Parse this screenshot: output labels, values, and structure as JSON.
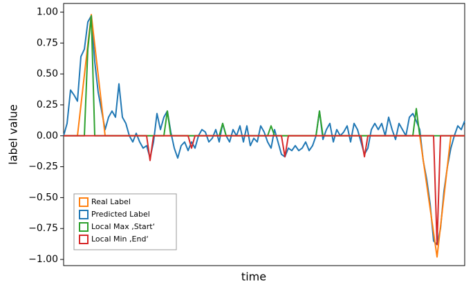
{
  "chart_data": {
    "type": "line",
    "xlabel": "time",
    "ylabel": "label value",
    "ylim": [
      -1.05,
      1.07
    ],
    "yticks": [
      {
        "value": 1.0,
        "label": "1.00"
      },
      {
        "value": 0.75,
        "label": "0.75"
      },
      {
        "value": 0.5,
        "label": "0.50"
      },
      {
        "value": 0.25,
        "label": "0.25"
      },
      {
        "value": 0.0,
        "label": "0.00"
      },
      {
        "value": -0.25,
        "label": "−0.25"
      },
      {
        "value": -0.5,
        "label": "−0.50"
      },
      {
        "value": -0.75,
        "label": "−0.75"
      },
      {
        "value": -1.0,
        "label": "−1.00"
      }
    ],
    "legend": "lower left",
    "series": [
      {
        "name": "Real Label",
        "color": "#ff7f0e",
        "values": [
          0,
          0,
          0,
          0,
          0,
          0.245,
          0.49,
          0.735,
          0.98,
          0.735,
          0.49,
          0.245,
          0,
          0,
          0,
          0,
          0,
          0,
          0,
          0,
          0,
          0,
          0,
          0,
          0,
          0,
          0,
          0,
          0,
          0,
          0,
          0,
          0,
          0,
          0,
          0,
          0,
          0,
          0,
          0,
          0,
          0,
          0,
          0,
          0,
          0,
          0,
          0,
          0,
          0,
          0,
          0,
          0,
          0,
          0,
          0,
          0,
          0,
          0,
          0,
          0,
          0,
          0,
          0,
          0,
          0,
          0,
          0,
          0,
          0,
          0,
          0,
          0,
          0,
          0,
          0,
          0,
          0,
          0,
          0,
          0,
          0,
          0,
          0,
          0,
          0,
          0,
          0,
          0,
          0,
          0,
          0,
          0,
          0,
          0,
          0,
          0,
          0,
          0,
          0,
          0,
          0,
          0,
          0,
          -0.196,
          -0.392,
          -0.588,
          -0.784,
          -0.98,
          -0.735,
          -0.49,
          -0.245,
          0,
          0,
          0,
          0,
          0
        ]
      },
      {
        "name": "Predicted Label",
        "color": "#1f77b4",
        "values": [
          0,
          0.1,
          0.37,
          0.33,
          0.28,
          0.64,
          0.7,
          0.92,
          0.97,
          0.6,
          0.35,
          0.2,
          0.05,
          0.15,
          0.2,
          0.15,
          0.42,
          0.15,
          0.1,
          0,
          -0.05,
          0.02,
          -0.05,
          -0.1,
          -0.08,
          -0.18,
          -0.05,
          0.18,
          0.05,
          0.15,
          0.2,
          0.03,
          -0.1,
          -0.18,
          -0.08,
          -0.05,
          -0.12,
          -0.05,
          -0.1,
          0,
          0.05,
          0.03,
          -0.05,
          -0.02,
          0.05,
          -0.05,
          0.1,
          0,
          -0.05,
          0.05,
          0,
          0.08,
          -0.05,
          0.08,
          -0.08,
          -0.02,
          -0.05,
          0.08,
          0.03,
          -0.05,
          -0.1,
          0.05,
          -0.05,
          -0.15,
          -0.17,
          -0.1,
          -0.12,
          -0.08,
          -0.12,
          -0.1,
          -0.05,
          -0.12,
          -0.08,
          0,
          0.2,
          -0.03,
          0.05,
          0.1,
          -0.05,
          0.05,
          0,
          0.03,
          0.08,
          -0.05,
          0.1,
          0.05,
          -0.05,
          -0.15,
          -0.1,
          0.05,
          0.1,
          0.05,
          0.1,
          0,
          0.15,
          0.05,
          -0.03,
          0.1,
          0.05,
          0,
          0.15,
          0.18,
          0.12,
          0.05,
          -0.2,
          -0.35,
          -0.55,
          -0.85,
          -0.88,
          -0.75,
          -0.45,
          -0.25,
          -0.1,
          0,
          0.08,
          0.05,
          0.12
        ]
      },
      {
        "name": "Local Max ,Start‘",
        "color": "#2ca02c",
        "values": [
          0,
          0,
          0,
          0,
          0,
          0,
          0,
          0.7,
          0.97,
          0,
          0,
          0,
          0,
          0,
          0,
          0,
          0,
          0,
          0,
          0,
          0,
          0,
          0,
          0,
          0,
          0,
          0,
          0,
          0,
          0,
          0.2,
          0,
          0,
          0,
          0,
          0,
          0,
          0,
          0,
          0,
          0,
          0,
          0,
          0,
          0,
          0,
          0.1,
          0,
          0,
          0,
          0,
          0,
          0,
          0,
          0,
          0,
          0,
          0,
          0,
          0,
          0.08,
          0,
          0,
          0,
          0,
          0,
          0,
          0,
          0,
          0,
          0,
          0,
          0,
          0,
          0.2,
          0,
          0,
          0,
          0,
          0,
          0,
          0,
          0,
          0,
          0,
          0,
          0,
          0,
          0,
          0,
          0,
          0,
          0,
          0,
          0,
          0,
          0,
          0,
          0,
          0,
          0,
          0,
          0.22,
          0,
          0,
          0,
          0,
          0,
          0,
          0,
          0,
          0,
          0,
          0,
          0,
          0,
          0
        ]
      },
      {
        "name": "Local Min ,End‘",
        "color": "#d62728",
        "values": [
          0,
          0,
          0,
          0,
          0,
          0,
          0,
          0,
          0,
          0,
          0,
          0,
          0,
          0,
          0,
          0,
          0,
          0,
          0,
          0,
          0,
          0,
          0,
          0,
          0,
          -0.2,
          0,
          0,
          0,
          0,
          0,
          0,
          0,
          0,
          0,
          0,
          0,
          -0.1,
          0,
          0,
          0,
          0,
          0,
          0,
          0,
          0,
          0,
          0,
          0,
          0,
          0,
          0,
          0,
          0,
          0,
          0,
          0,
          0,
          0,
          0,
          0,
          0,
          0,
          0,
          -0.17,
          0,
          0,
          0,
          0,
          0,
          0,
          0,
          0,
          0,
          0,
          0,
          0,
          0,
          0,
          0,
          0,
          0,
          0,
          0,
          0,
          0,
          0,
          -0.17,
          0,
          0,
          0,
          0,
          0,
          0,
          0,
          0,
          0,
          0,
          0,
          0,
          0,
          0,
          0,
          0,
          0,
          0,
          0,
          0,
          -0.88,
          0,
          0,
          0,
          0,
          0,
          0,
          0,
          0
        ]
      }
    ]
  }
}
